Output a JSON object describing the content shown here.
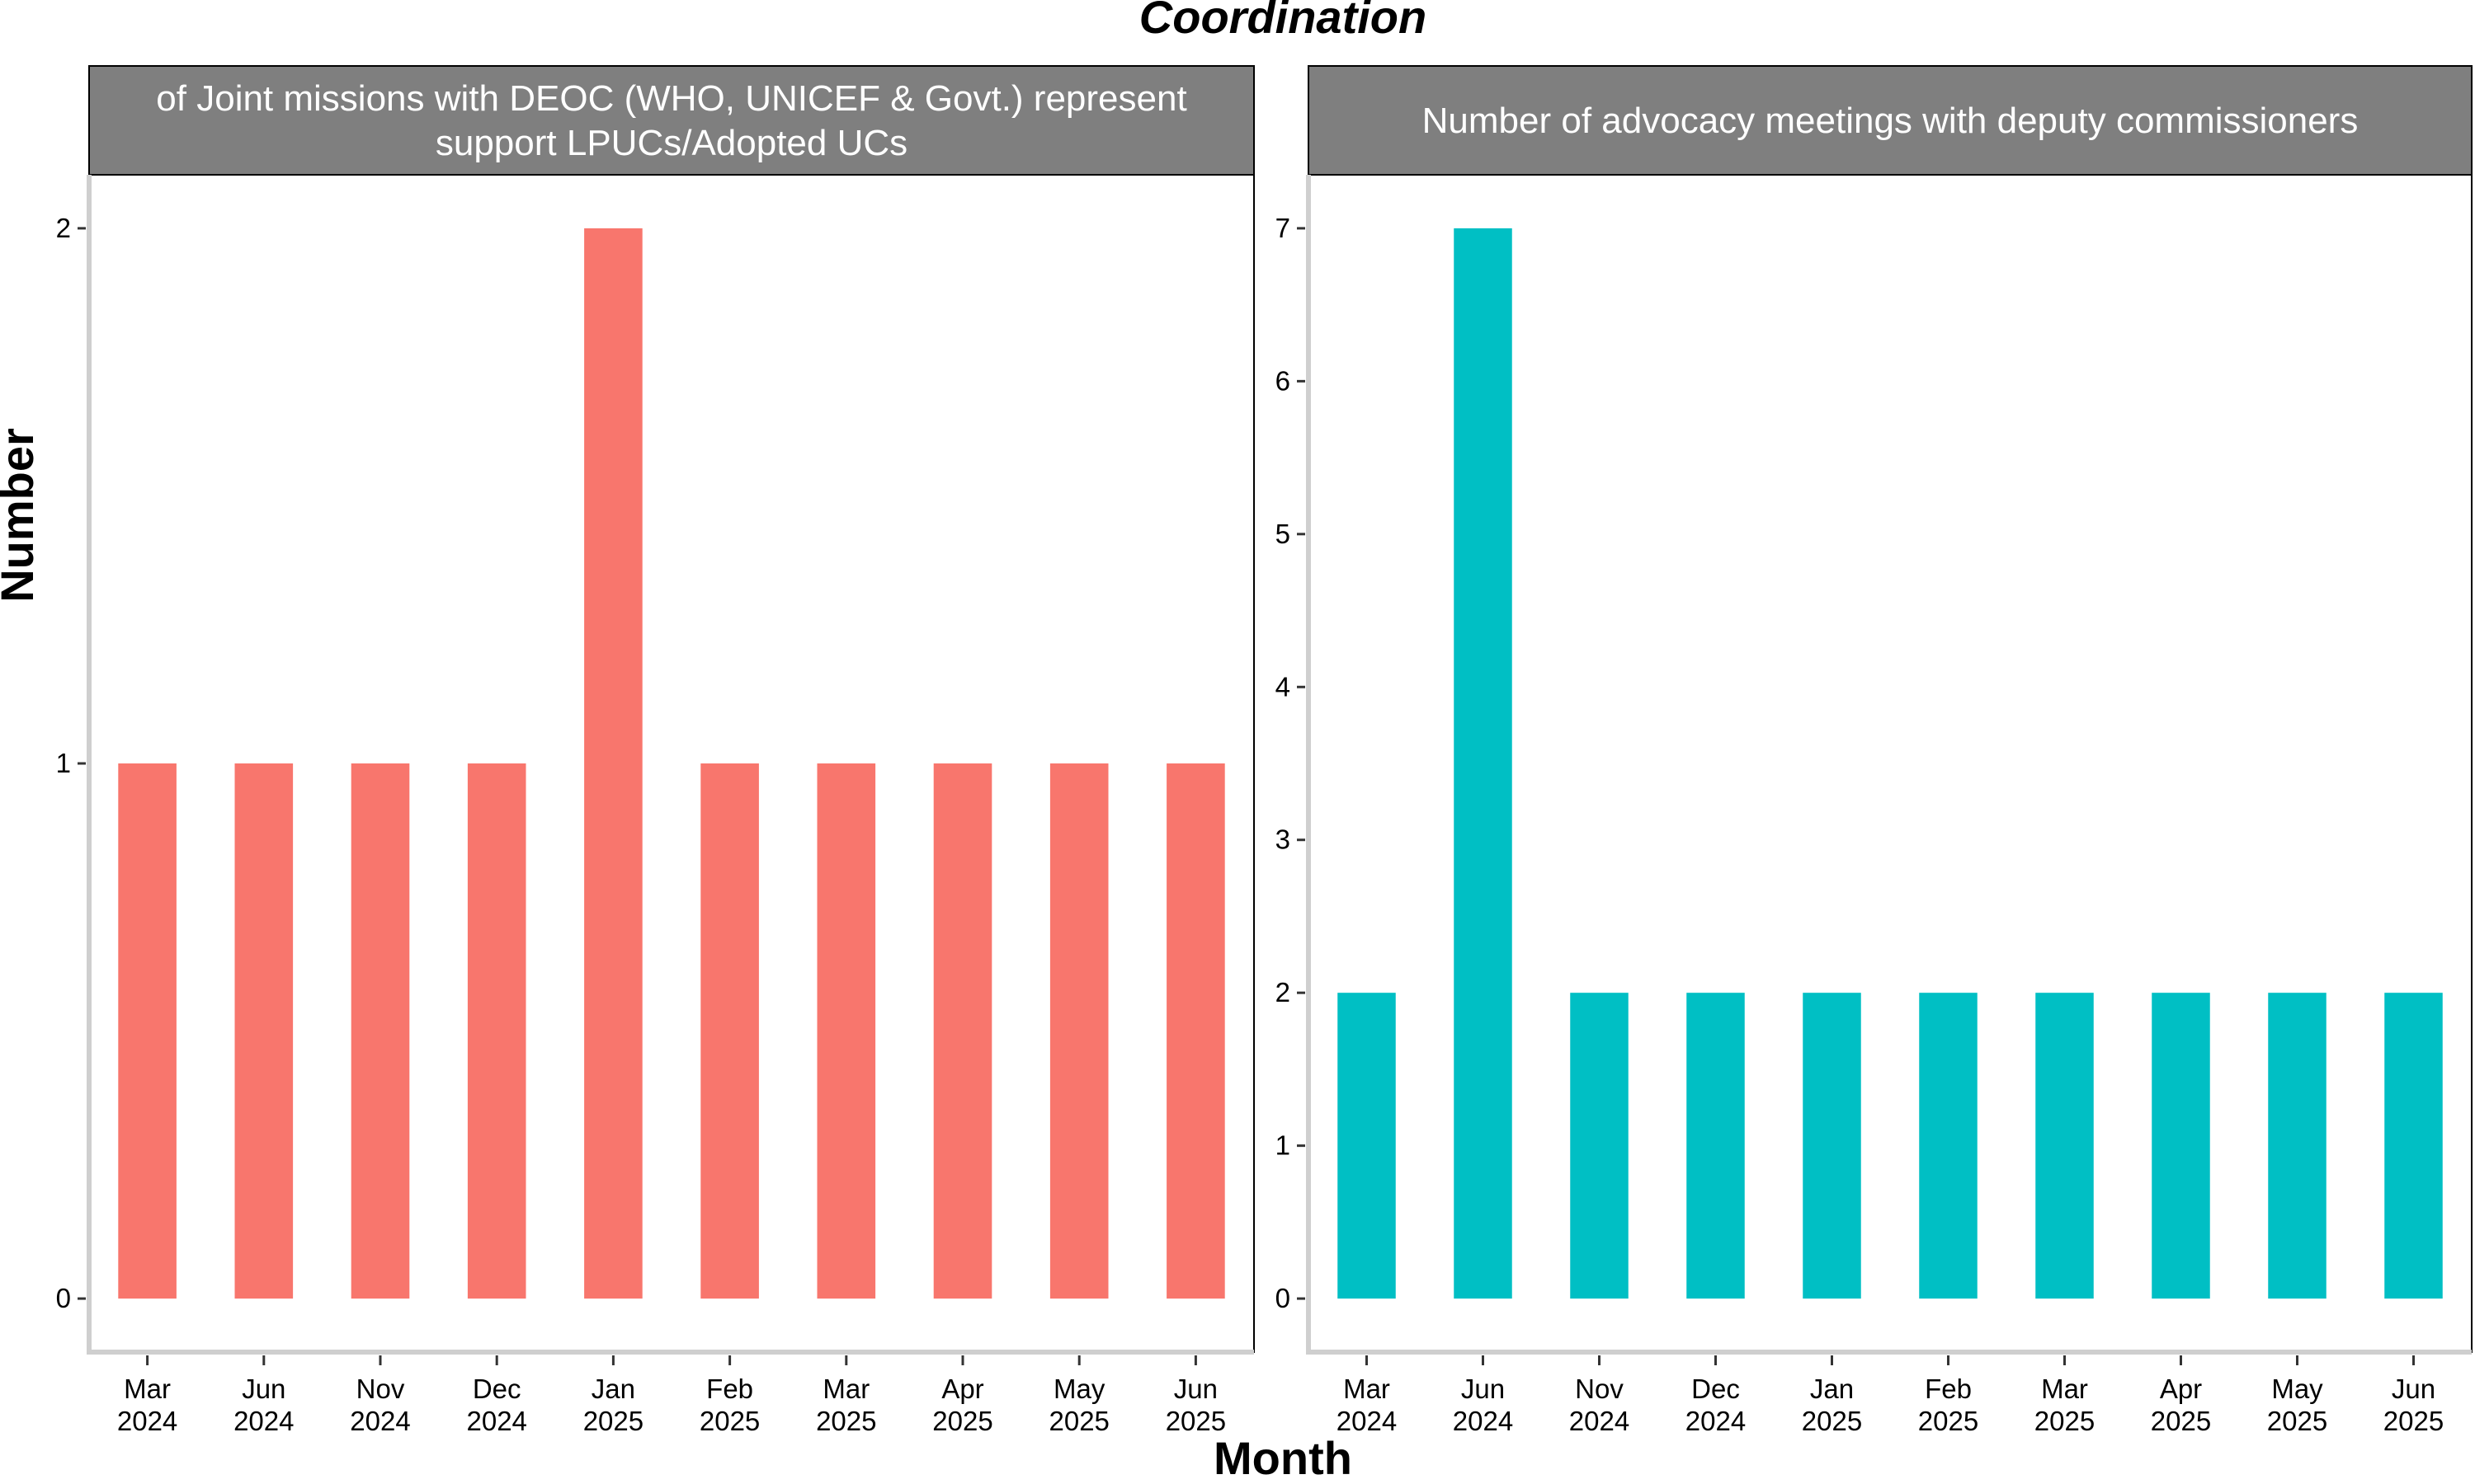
{
  "title": "Coordination",
  "xlabel": "Month",
  "ylabel": "Number",
  "chart_data": [
    {
      "type": "bar",
      "title_lines": [
        "of Joint missions with DEOC (WHO, UNICEF & Govt.) represent",
        "support LPUCs/Adopted UCs"
      ],
      "color": "#F8766D",
      "categories": [
        [
          "Mar",
          "2024"
        ],
        [
          "Jun",
          "2024"
        ],
        [
          "Nov",
          "2024"
        ],
        [
          "Dec",
          "2024"
        ],
        [
          "Jan",
          "2025"
        ],
        [
          "Feb",
          "2025"
        ],
        [
          "Mar",
          "2025"
        ],
        [
          "Apr",
          "2025"
        ],
        [
          "May",
          "2025"
        ],
        [
          "Jun",
          "2025"
        ]
      ],
      "values": [
        1,
        1,
        1,
        1,
        2,
        1,
        1,
        1,
        1,
        1
      ],
      "ylim": [
        -0.1,
        2.1
      ],
      "yticks": [
        0,
        1,
        2
      ]
    },
    {
      "type": "bar",
      "title_lines": [
        "Number of advocacy meetings with deputy commissioners"
      ],
      "color": "#00BFC4",
      "categories": [
        [
          "Mar",
          "2024"
        ],
        [
          "Jun",
          "2024"
        ],
        [
          "Nov",
          "2024"
        ],
        [
          "Dec",
          "2024"
        ],
        [
          "Jan",
          "2025"
        ],
        [
          "Feb",
          "2025"
        ],
        [
          "Mar",
          "2025"
        ],
        [
          "Apr",
          "2025"
        ],
        [
          "May",
          "2025"
        ],
        [
          "Jun",
          "2025"
        ]
      ],
      "values": [
        2,
        7,
        2,
        2,
        2,
        2,
        2,
        2,
        2,
        2
      ],
      "ylim": [
        -0.35,
        7.35
      ],
      "yticks": [
        0,
        1,
        2,
        3,
        4,
        5,
        6,
        7
      ]
    }
  ]
}
